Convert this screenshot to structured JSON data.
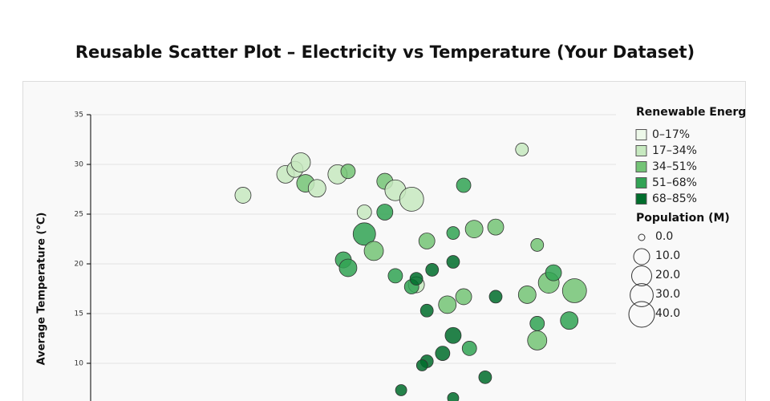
{
  "chart_data": {
    "type": "scatter",
    "title": "Reusable Scatter Plot – Electricity vs Temperature (Your Dataset)",
    "y_label": "Average Temperature (°C)",
    "xlim": [
      0,
      100
    ],
    "ylim": [
      0,
      35
    ],
    "yticks": [
      10,
      15,
      20,
      25,
      30,
      35
    ],
    "grid": true,
    "series": [
      {
        "x": [
          29.0,
          37.1,
          38.9,
          40.0,
          40.9,
          43.1,
          47.0,
          49.0,
          52.1,
          56.0,
          58.0,
          61.1,
          56.0,
          52.1,
          53.9,
          48.1,
          49.0,
          58.0,
          62.0,
          61.1,
          62.0,
          65.0,
          64.0,
          69.0,
          71.0,
          73.0,
          77.1,
          82.1,
          85.0,
          69.0,
          67.9,
          71.0,
          77.1,
          83.1,
          87.2,
          88.1,
          92.1,
          64.0,
          85.0,
          85.0,
          91.1,
          69.0,
          72.1,
          67.0,
          64.0,
          63.1,
          75.1,
          59.1,
          69.0
        ],
        "values": [
          26.9,
          29.0,
          29.5,
          30.2,
          28.1,
          27.6,
          29.0,
          29.3,
          25.2,
          28.3,
          27.4,
          26.5,
          25.2,
          23.0,
          21.3,
          20.4,
          19.6,
          18.8,
          17.9,
          17.7,
          18.5,
          19.4,
          22.3,
          23.1,
          27.9,
          23.5,
          23.7,
          31.5,
          21.9,
          20.2,
          15.9,
          16.7,
          16.7,
          16.9,
          18.1,
          19.1,
          17.3,
          15.3,
          14.0,
          12.3,
          14.3,
          12.8,
          11.5,
          11.0,
          10.2,
          9.8,
          8.6,
          7.3,
          6.5
        ],
        "sizes": [
          10,
          13.6,
          10,
          17.8,
          13.6,
          13.6,
          17.8,
          6.9,
          6.9,
          10,
          22.5,
          33.6,
          10,
          27.8,
          17.8,
          10,
          13.6,
          6.9,
          10,
          6.9,
          4.4,
          4.4,
          10,
          4.4,
          6.9,
          13.6,
          10,
          4.4,
          4.4,
          4.4,
          13.6,
          10,
          4.4,
          13.6,
          22.5,
          10,
          33.6,
          4.4,
          6.9,
          17.8,
          13.6,
          10,
          6.9,
          6.9,
          4.4,
          2.5,
          4.4,
          2.5,
          2.5
        ],
        "renewable": [
          25,
          25,
          25,
          25,
          42,
          25,
          25,
          42,
          25,
          42,
          25,
          25,
          60,
          60,
          42,
          60,
          60,
          60,
          25,
          60,
          77,
          77,
          42,
          60,
          60,
          42,
          42,
          25,
          42,
          77,
          42,
          42,
          77,
          42,
          42,
          60,
          42,
          77,
          60,
          42,
          60,
          77,
          60,
          77,
          77,
          77,
          77,
          77,
          77
        ]
      }
    ],
    "color_legend": {
      "title": "Renewable Energ",
      "bins": [
        {
          "label": "0–17%",
          "min": 0,
          "max": 17,
          "color": "#edf8e9"
        },
        {
          "label": "17–34%",
          "min": 17,
          "max": 34,
          "color": "#c7e9c0"
        },
        {
          "label": "34–51%",
          "min": 34,
          "max": 51,
          "color": "#74c476"
        },
        {
          "label": "51–68%",
          "min": 51,
          "max": 68,
          "color": "#31a354"
        },
        {
          "label": "68–85%",
          "min": 68,
          "max": 85,
          "color": "#006d2c"
        }
      ]
    },
    "size_legend": {
      "title": "Population (M)",
      "values": [
        0,
        10,
        20,
        30,
        40
      ],
      "value_labels": [
        "0.0",
        "10.0",
        "20.0",
        "30.0",
        "40.0"
      ]
    }
  }
}
